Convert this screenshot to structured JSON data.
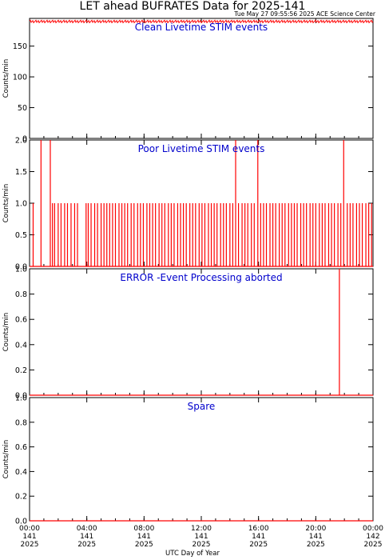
{
  "chart_data": {
    "type": "line",
    "title": "LET ahead BUFRATES Data for 2025-141",
    "subtitle": "Tue May 27 09:55:56 2025 ACE Science Center",
    "xlabel": "UTC Day of Year",
    "ylabel": "Counts/min",
    "x_ticks": [
      {
        "time": "00:00",
        "doy": "141",
        "year": "2025"
      },
      {
        "time": "04:00",
        "doy": "141",
        "year": "2025"
      },
      {
        "time": "08:00",
        "doy": "141",
        "year": "2025"
      },
      {
        "time": "12:00",
        "doy": "141",
        "year": "2025"
      },
      {
        "time": "16:00",
        "doy": "141",
        "year": "2025"
      },
      {
        "time": "20:00",
        "doy": "141",
        "year": "2025"
      },
      {
        "time": "00:00",
        "doy": "142",
        "year": "2025"
      }
    ],
    "xlim_hours": [
      0,
      24
    ],
    "line_color": "#ff0000",
    "label_color": "#0000cc",
    "panels": [
      {
        "label": "Clean Livetime STIM events",
        "ylim": [
          0,
          195
        ],
        "yticks": [
          "0",
          "50",
          "100",
          "150"
        ],
        "baseline": 190,
        "noise": 2,
        "spikes": []
      },
      {
        "label": "Poor Livetime STIM events",
        "ylim": [
          0,
          2
        ],
        "yticks": [
          "0.0",
          "0.5",
          "1.0",
          "1.5",
          "2.0"
        ],
        "baseline": 0,
        "spikes": [
          {
            "t": 0.25,
            "v": 1
          },
          {
            "t": 0.8,
            "v": 2
          },
          {
            "t": 1.45,
            "v": 2
          },
          {
            "t": 1.6,
            "v": 1
          },
          {
            "t": 1.75,
            "v": 1
          },
          {
            "t": 2.0,
            "v": 1
          },
          {
            "t": 2.2,
            "v": 1
          },
          {
            "t": 2.45,
            "v": 1
          },
          {
            "t": 2.65,
            "v": 1
          },
          {
            "t": 2.9,
            "v": 1
          },
          {
            "t": 3.15,
            "v": 1
          },
          {
            "t": 3.35,
            "v": 1
          },
          {
            "t": 3.95,
            "v": 1
          },
          {
            "t": 4.1,
            "v": 1
          },
          {
            "t": 4.3,
            "v": 1
          },
          {
            "t": 4.55,
            "v": 1
          },
          {
            "t": 4.75,
            "v": 1
          },
          {
            "t": 5.0,
            "v": 1
          },
          {
            "t": 5.2,
            "v": 1
          },
          {
            "t": 5.4,
            "v": 1
          },
          {
            "t": 5.6,
            "v": 1
          },
          {
            "t": 5.8,
            "v": 1
          },
          {
            "t": 6.0,
            "v": 1
          },
          {
            "t": 6.25,
            "v": 1
          },
          {
            "t": 6.45,
            "v": 1
          },
          {
            "t": 6.65,
            "v": 1
          },
          {
            "t": 6.85,
            "v": 1
          },
          {
            "t": 7.1,
            "v": 1
          },
          {
            "t": 7.3,
            "v": 1
          },
          {
            "t": 7.55,
            "v": 1
          },
          {
            "t": 7.75,
            "v": 1
          },
          {
            "t": 7.95,
            "v": 1
          },
          {
            "t": 8.2,
            "v": 1
          },
          {
            "t": 8.4,
            "v": 1
          },
          {
            "t": 8.6,
            "v": 1
          },
          {
            "t": 8.8,
            "v": 1
          },
          {
            "t": 9.05,
            "v": 1
          },
          {
            "t": 9.25,
            "v": 1
          },
          {
            "t": 9.45,
            "v": 1
          },
          {
            "t": 9.7,
            "v": 1
          },
          {
            "t": 9.9,
            "v": 1
          },
          {
            "t": 10.1,
            "v": 1
          },
          {
            "t": 10.35,
            "v": 1
          },
          {
            "t": 10.55,
            "v": 1
          },
          {
            "t": 10.75,
            "v": 1
          },
          {
            "t": 10.95,
            "v": 1
          },
          {
            "t": 11.2,
            "v": 1
          },
          {
            "t": 11.4,
            "v": 1
          },
          {
            "t": 11.6,
            "v": 1
          },
          {
            "t": 11.85,
            "v": 1
          },
          {
            "t": 12.05,
            "v": 1
          },
          {
            "t": 12.25,
            "v": 1
          },
          {
            "t": 12.5,
            "v": 1
          },
          {
            "t": 12.7,
            "v": 1
          },
          {
            "t": 12.9,
            "v": 1
          },
          {
            "t": 13.1,
            "v": 1
          },
          {
            "t": 13.35,
            "v": 1
          },
          {
            "t": 13.55,
            "v": 1
          },
          {
            "t": 13.75,
            "v": 1
          },
          {
            "t": 14.0,
            "v": 1
          },
          {
            "t": 14.2,
            "v": 1
          },
          {
            "t": 14.4,
            "v": 2
          },
          {
            "t": 14.6,
            "v": 1
          },
          {
            "t": 14.85,
            "v": 1
          },
          {
            "t": 15.05,
            "v": 1
          },
          {
            "t": 15.25,
            "v": 1
          },
          {
            "t": 15.5,
            "v": 1
          },
          {
            "t": 15.7,
            "v": 1
          },
          {
            "t": 15.95,
            "v": 2
          },
          {
            "t": 16.15,
            "v": 1
          },
          {
            "t": 16.35,
            "v": 1
          },
          {
            "t": 16.55,
            "v": 1
          },
          {
            "t": 16.8,
            "v": 1
          },
          {
            "t": 17.0,
            "v": 1
          },
          {
            "t": 17.2,
            "v": 1
          },
          {
            "t": 17.45,
            "v": 1
          },
          {
            "t": 17.65,
            "v": 1
          },
          {
            "t": 17.85,
            "v": 1
          },
          {
            "t": 18.1,
            "v": 1
          },
          {
            "t": 18.3,
            "v": 1
          },
          {
            "t": 18.5,
            "v": 1
          },
          {
            "t": 18.7,
            "v": 1
          },
          {
            "t": 18.95,
            "v": 1
          },
          {
            "t": 19.15,
            "v": 1
          },
          {
            "t": 19.35,
            "v": 1
          },
          {
            "t": 19.6,
            "v": 1
          },
          {
            "t": 19.8,
            "v": 1
          },
          {
            "t": 20.0,
            "v": 1
          },
          {
            "t": 20.25,
            "v": 1
          },
          {
            "t": 20.45,
            "v": 1
          },
          {
            "t": 20.65,
            "v": 1
          },
          {
            "t": 20.9,
            "v": 1
          },
          {
            "t": 21.1,
            "v": 1
          },
          {
            "t": 21.3,
            "v": 1
          },
          {
            "t": 21.55,
            "v": 1
          },
          {
            "t": 21.75,
            "v": 1
          },
          {
            "t": 21.95,
            "v": 2
          },
          {
            "t": 22.2,
            "v": 1
          },
          {
            "t": 22.4,
            "v": 1
          },
          {
            "t": 22.6,
            "v": 1
          },
          {
            "t": 22.85,
            "v": 1
          },
          {
            "t": 23.05,
            "v": 1
          },
          {
            "t": 23.25,
            "v": 1
          },
          {
            "t": 23.5,
            "v": 1
          },
          {
            "t": 23.7,
            "v": 1
          },
          {
            "t": 23.9,
            "v": 1
          }
        ]
      },
      {
        "label": "ERROR -Event Processing aborted",
        "ylim": [
          0,
          1
        ],
        "yticks": [
          "0.0",
          "0.2",
          "0.4",
          "0.6",
          "0.8",
          "1.0"
        ],
        "baseline": 0,
        "spikes": [
          {
            "t": 21.65,
            "v": 1
          }
        ]
      },
      {
        "label": "Spare",
        "ylim": [
          0,
          1
        ],
        "yticks": [
          "0.0",
          "0.2",
          "0.4",
          "0.6",
          "0.8",
          "1.0"
        ],
        "baseline": 0,
        "spikes": []
      }
    ]
  }
}
